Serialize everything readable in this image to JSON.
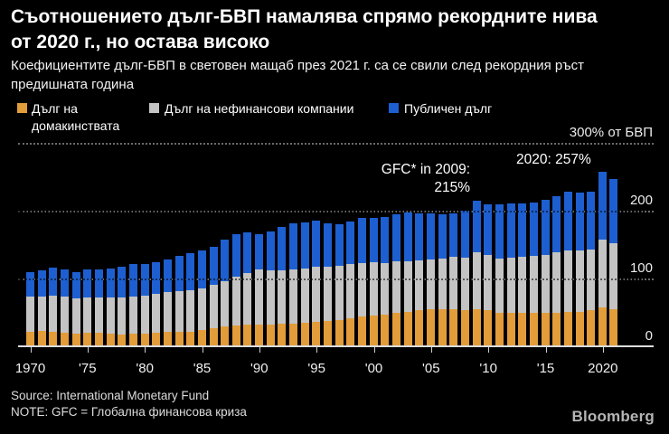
{
  "header": {
    "title_line1": "Съотношението дълг-БВП намалява спрямо рекордните нива",
    "title_line2": "от 2020 г., но остава високо",
    "subtitle_line1": "Коефициентите дълг-БВП в световен мащаб през 2021 г. са се свили след рекордния ръст",
    "subtitle_line2": "предишната година"
  },
  "axis": {
    "y_labels": [
      {
        "value": 300,
        "label": "300% от БВП"
      },
      {
        "value": 200,
        "label": "200"
      },
      {
        "value": 100,
        "label": "100"
      },
      {
        "value": 0,
        "label": "0"
      }
    ],
    "x_labels": [
      {
        "year": 1970,
        "label": "1970"
      },
      {
        "year": 1975,
        "label": "'75"
      },
      {
        "year": 1980,
        "label": "'80"
      },
      {
        "year": 1985,
        "label": "'85"
      },
      {
        "year": 1990,
        "label": "'90"
      },
      {
        "year": 1995,
        "label": "'95"
      },
      {
        "year": 2000,
        "label": "'00"
      },
      {
        "year": 2005,
        "label": "'05"
      },
      {
        "year": 2010,
        "label": "'10"
      },
      {
        "year": 2015,
        "label": "'15"
      },
      {
        "year": 2020,
        "label": "2020"
      }
    ]
  },
  "footer": {
    "source": "Source: International Monetary Fund",
    "note": "NOTE: GFC = Глобална финансова криза",
    "logo": "Bloomberg"
  },
  "chart_data": {
    "type": "bar",
    "stacked": true,
    "title": "Съотношението дълг-БВП намалява спрямо рекордните нива от 2020 г., но остава високо",
    "unit": "% от БВП",
    "ylim": [
      0,
      300
    ],
    "grid": "horizontal dotted at 100, 200, 300",
    "legend_position": "top",
    "x": [
      1970,
      1971,
      1972,
      1973,
      1974,
      1975,
      1976,
      1977,
      1978,
      1979,
      1980,
      1981,
      1982,
      1983,
      1984,
      1985,
      1986,
      1987,
      1988,
      1989,
      1990,
      1991,
      1992,
      1993,
      1994,
      1995,
      1996,
      1997,
      1998,
      1999,
      2000,
      2001,
      2002,
      2003,
      2004,
      2005,
      2006,
      2007,
      2008,
      2009,
      2010,
      2011,
      2012,
      2013,
      2014,
      2015,
      2016,
      2017,
      2018,
      2019,
      2020,
      2021
    ],
    "series": [
      {
        "name": "Дълг на домакинствата",
        "color": "#E29C3A",
        "values": [
          22,
          23,
          22,
          20,
          19,
          20,
          20,
          19,
          18,
          19,
          19,
          20,
          22,
          22,
          22,
          24,
          27,
          29,
          31,
          32,
          32,
          32,
          33,
          34,
          35,
          36,
          38,
          39,
          41,
          44,
          45,
          47,
          49,
          51,
          53,
          55,
          55,
          55,
          54,
          55,
          54,
          50,
          50,
          50,
          50,
          50,
          50,
          51,
          51,
          53,
          57,
          55
        ]
      },
      {
        "name": "Дълг на нефинансови компании",
        "color": "#C4C4C4",
        "values": [
          51,
          51,
          53,
          53,
          52,
          52,
          52,
          53,
          54,
          55,
          56,
          57,
          58,
          60,
          61,
          62,
          64,
          67,
          72,
          76,
          81,
          80,
          79,
          80,
          80,
          81,
          80,
          80,
          80,
          79,
          79,
          76,
          76,
          75,
          74,
          73,
          74,
          77,
          77,
          84,
          81,
          80,
          81,
          82,
          84,
          85,
          89,
          91,
          91,
          90,
          100,
          97
        ]
      },
      {
        "name": "Публичен дълг",
        "color": "#1D5FD0",
        "values": [
          37,
          38,
          41,
          40,
          39,
          41,
          42,
          43,
          46,
          47,
          46,
          47,
          48,
          51,
          54,
          55,
          56,
          61,
          63,
          60,
          52,
          58,
          64,
          68,
          68,
          68,
          63,
          61,
          63,
          66,
          65,
          68,
          70,
          71,
          69,
          68,
          66,
          64,
          69,
          76,
          75,
          80,
          80,
          79,
          78,
          81,
          82,
          86,
          85,
          85,
          100,
          95
        ]
      }
    ],
    "annotations": {
      "gfc": {
        "line1": "GFC* in 2009:",
        "line2": "215%",
        "target_year": 2009,
        "total_pct": 215
      },
      "peak": {
        "text": "2020: 257%",
        "target_year": 2020,
        "total_pct": 257
      }
    }
  }
}
